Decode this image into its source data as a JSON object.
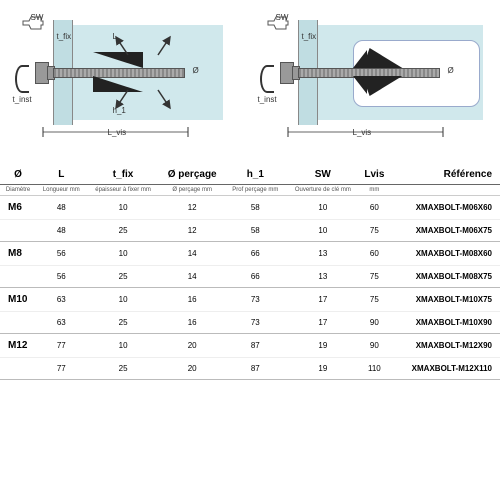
{
  "diagram": {
    "labels": {
      "sw": "SW",
      "tfix": "t_fix",
      "tinst": "t_inst",
      "L": "L",
      "h1": "h_1",
      "Lvis": "L_vis",
      "dia": "Ø"
    },
    "colors": {
      "wall": "#d0e8ec",
      "bolt": "#888888",
      "bolt_dark": "#555555",
      "expander": "#222222",
      "bg": "#ffffff"
    }
  },
  "table": {
    "headers": {
      "diam": "Ø",
      "L": "L",
      "tfix": "t_fix",
      "drill": "Ø perçage",
      "h1": "h_1",
      "sw": "SW",
      "lvis": "Lvis",
      "ref": "Référence"
    },
    "subheaders": {
      "diam": "Diamètre",
      "L": "Longueur mm",
      "tfix": "épaisseur à fixer mm",
      "drill": "Ø perçage mm",
      "h1": "Prof perçage mm",
      "sw": "Ouverture de clé mm",
      "lvis": "mm",
      "ref": ""
    },
    "rows": [
      {
        "diam": "M6",
        "L": "48",
        "tfix": "10",
        "drill": "12",
        "h1": "58",
        "sw": "10",
        "lvis": "60",
        "ref": "XMAXBOLT-M06X60"
      },
      {
        "diam": "",
        "L": "48",
        "tfix": "25",
        "drill": "12",
        "h1": "58",
        "sw": "10",
        "lvis": "75",
        "ref": "XMAXBOLT-M06X75"
      },
      {
        "diam": "M8",
        "L": "56",
        "tfix": "10",
        "drill": "14",
        "h1": "66",
        "sw": "13",
        "lvis": "60",
        "ref": "XMAXBOLT-M08X60"
      },
      {
        "diam": "",
        "L": "56",
        "tfix": "25",
        "drill": "14",
        "h1": "66",
        "sw": "13",
        "lvis": "75",
        "ref": "XMAXBOLT-M08X75"
      },
      {
        "diam": "M10",
        "L": "63",
        "tfix": "10",
        "drill": "16",
        "h1": "73",
        "sw": "17",
        "lvis": "75",
        "ref": "XMAXBOLT-M10X75"
      },
      {
        "diam": "",
        "L": "63",
        "tfix": "25",
        "drill": "16",
        "h1": "73",
        "sw": "17",
        "lvis": "90",
        "ref": "XMAXBOLT-M10X90"
      },
      {
        "diam": "M12",
        "L": "77",
        "tfix": "10",
        "drill": "20",
        "h1": "87",
        "sw": "19",
        "lvis": "90",
        "ref": "XMAXBOLT-M12X90"
      },
      {
        "diam": "",
        "L": "77",
        "tfix": "25",
        "drill": "20",
        "h1": "87",
        "sw": "19",
        "lvis": "110",
        "ref": "XMAXBOLT-M12X110"
      }
    ]
  }
}
